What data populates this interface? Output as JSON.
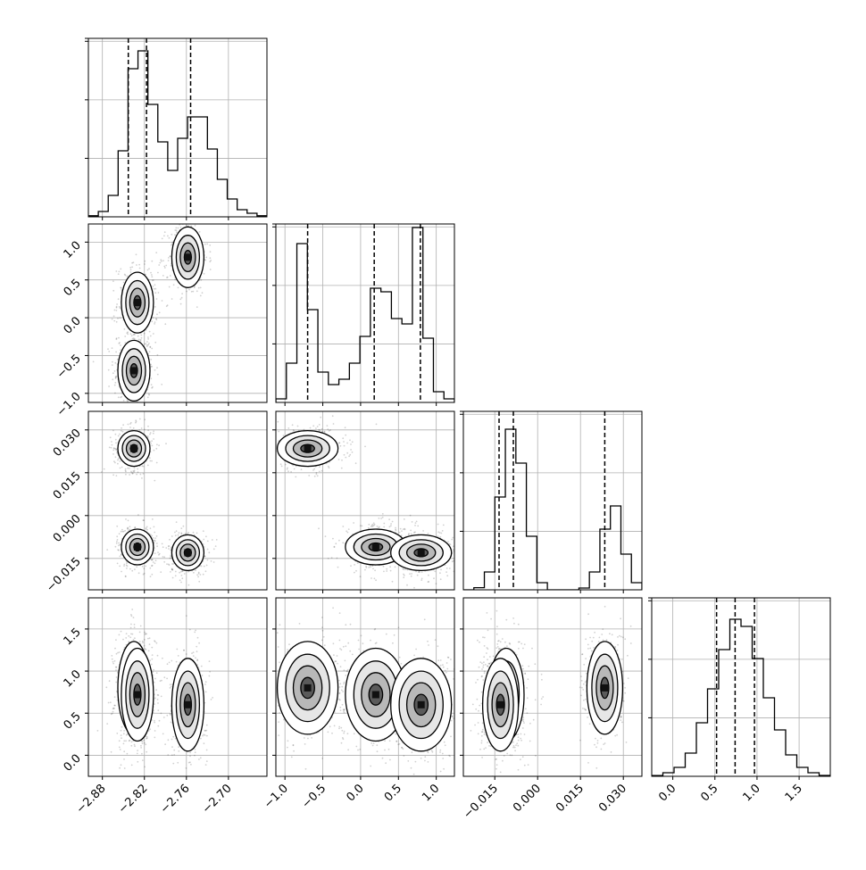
{
  "chart_data": {
    "type": "corner",
    "title": "",
    "variables": [
      {
        "ticks": [
          -2.88,
          -2.82,
          -2.76,
          -2.7
        ],
        "tick_labels": [
          "−2.88",
          "−2.82",
          "−2.76",
          "−2.70"
        ],
        "range": [
          -2.9,
          -2.645
        ],
        "quantiles": [
          -2.843,
          -2.817,
          -2.754
        ],
        "hist": [
          0.006,
          0.03,
          0.12,
          0.37,
          0.83,
          0.93,
          0.63,
          0.42,
          0.26,
          0.44,
          0.56,
          0.56,
          0.38,
          0.21,
          0.1,
          0.04,
          0.02,
          0.006
        ]
      },
      {
        "ticks": [
          -1.0,
          -0.5,
          0.0,
          0.5,
          1.0
        ],
        "tick_labels": [
          "−1.0",
          "−0.5",
          "0.0",
          "0.5",
          "1.0"
        ],
        "range": [
          -1.12,
          1.24
        ],
        "quantiles": [
          -0.7,
          0.18,
          0.79
        ],
        "hist": [
          0.02,
          0.22,
          0.89,
          0.52,
          0.17,
          0.1,
          0.13,
          0.22,
          0.37,
          0.64,
          0.62,
          0.47,
          0.44,
          0.98,
          0.36,
          0.06,
          0.02
        ]
      },
      {
        "ticks": [
          -0.015,
          0.0,
          0.015,
          0.03
        ],
        "tick_labels": [
          "−0.015",
          "0.000",
          "0.015",
          "0.030"
        ],
        "range": [
          -0.026,
          0.0365
        ],
        "quantiles": [
          -0.0135,
          -0.0085,
          0.0235
        ],
        "hist": [
          0.0,
          0.012,
          0.1,
          0.52,
          0.9,
          0.71,
          0.3,
          0.04,
          0.0,
          0.0,
          0.0,
          0.01,
          0.1,
          0.34,
          0.47,
          0.2,
          0.04
        ]
      },
      {
        "ticks": [
          0.0,
          0.5,
          1.0,
          1.5
        ],
        "tick_labels": [
          "0.0",
          "0.5",
          "1.0",
          "1.5"
        ],
        "range": [
          -0.25,
          1.87
        ],
        "quantiles": [
          0.52,
          0.74,
          0.97
        ],
        "hist": [
          0.004,
          0.02,
          0.05,
          0.13,
          0.3,
          0.49,
          0.71,
          0.88,
          0.84,
          0.66,
          0.44,
          0.26,
          0.12,
          0.05,
          0.02,
          0.005
        ]
      }
    ],
    "y_ticks": {
      "1": [
        -1.0,
        -0.5,
        0.0,
        0.5,
        1.0
      ],
      "2": [
        -0.015,
        0.0,
        0.015,
        0.03
      ],
      "3": [
        0.0,
        0.5,
        1.0,
        1.5
      ]
    },
    "y_tick_labels": {
      "1": [
        "−1.0",
        "−0.5",
        "0.0",
        "0.5",
        "1.0"
      ],
      "2": [
        "−0.015",
        "0.000",
        "0.015",
        "0.030"
      ],
      "3": [
        "0.0",
        "0.5",
        "1.0",
        "1.5"
      ]
    },
    "modes": [
      {
        "x": -2.835,
        "y": -0.7,
        "z": 0.0235,
        "w": 0.8
      },
      {
        "x": -2.83,
        "y": 0.2,
        "z": -0.011,
        "w": 0.72
      },
      {
        "x": -2.758,
        "y": 0.8,
        "z": -0.013,
        "w": 0.6
      }
    ],
    "grid": true,
    "legend": "none"
  }
}
